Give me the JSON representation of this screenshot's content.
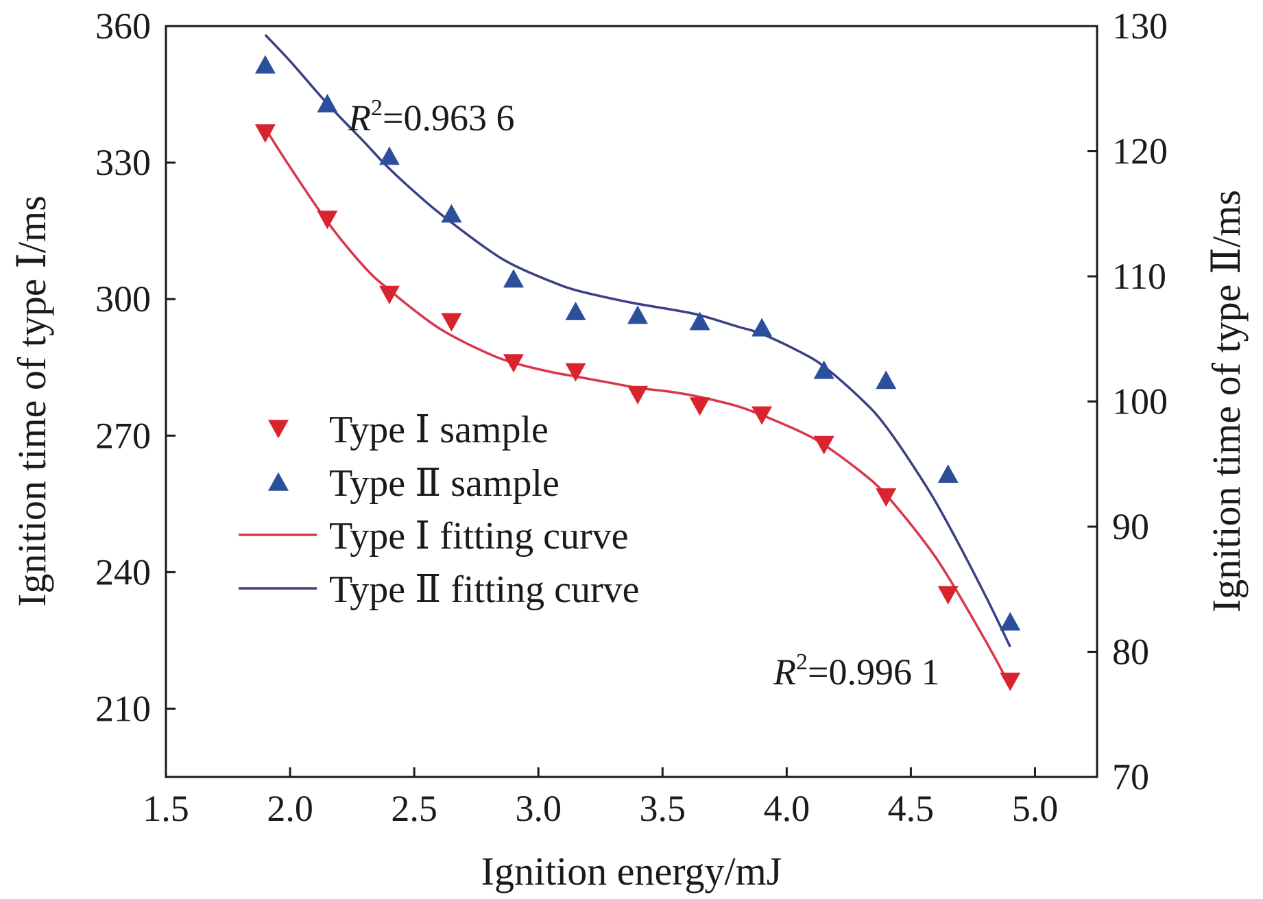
{
  "colors": {
    "type1": "#d92430",
    "type2": "#2b4f9a",
    "type1_curve": "#d8364a",
    "type2_curve": "#3a3f86",
    "axis": "#1a1a1a"
  },
  "chart_data": {
    "type": "scatter",
    "title": "",
    "xlabel": "Ignition energy/mJ",
    "ylabel_left": "Ignition time of type Ⅰ/ms",
    "ylabel_right": "Ignition time of type Ⅱ/ms",
    "xlim": [
      1.5,
      5.25
    ],
    "ylim_left": [
      195,
      360
    ],
    "ylim_right": [
      70,
      130
    ],
    "x_ticks": [
      "1.5",
      "2.0",
      "2.5",
      "3.0",
      "3.5",
      "4.0",
      "4.5",
      "5.0"
    ],
    "y_left_ticks": [
      "210",
      "240",
      "270",
      "300",
      "330",
      "360"
    ],
    "y_right_ticks": [
      "70",
      "80",
      "90",
      "100",
      "110",
      "120",
      "130"
    ],
    "grid": false,
    "legend_position": "center-left",
    "legend": [
      {
        "label": "Type Ⅰ sample",
        "kind": "marker-down"
      },
      {
        "label": "Type Ⅱ sample",
        "kind": "marker-up"
      },
      {
        "label": "Type Ⅰ fitting curve",
        "kind": "line-type1"
      },
      {
        "label": "Type Ⅱ fitting curve",
        "kind": "line-type2"
      }
    ],
    "annotations": {
      "r2_type2": {
        "prefix": "R",
        "sup": "2",
        "value": "=0.963 6"
      },
      "r2_type1": {
        "prefix": "R",
        "sup": "2",
        "value": "=0.996 1"
      }
    },
    "series": [
      {
        "name": "Type Ⅰ sample",
        "axis": "left",
        "marker": "triangle-down",
        "x": [
          1.9,
          2.15,
          2.4,
          2.65,
          2.9,
          3.15,
          3.4,
          3.65,
          3.9,
          4.15,
          4.4,
          4.65,
          4.9
        ],
        "y": [
          336.5,
          317.5,
          301,
          295,
          286,
          284,
          279,
          276.5,
          274.5,
          268,
          256.5,
          235,
          216
        ]
      },
      {
        "name": "Type Ⅱ sample",
        "axis": "right",
        "marker": "triangle-up",
        "x": [
          1.9,
          2.15,
          2.4,
          2.65,
          2.9,
          3.15,
          3.4,
          3.65,
          3.9,
          4.15,
          4.4,
          4.65,
          4.9
        ],
        "y": [
          126.9,
          123.8,
          119.6,
          115.0,
          109.8,
          107.2,
          106.9,
          106.4,
          105.9,
          102.5,
          101.7,
          94.2,
          82.4
        ]
      },
      {
        "name": "Type Ⅰ fitting curve",
        "axis": "left",
        "kind": "line",
        "x": [
          1.9,
          2.0,
          2.15,
          2.3,
          2.4,
          2.55,
          2.65,
          2.8,
          2.9,
          3.05,
          3.15,
          3.3,
          3.4,
          3.55,
          3.65,
          3.8,
          3.9,
          4.05,
          4.15,
          4.3,
          4.4,
          4.55,
          4.65,
          4.8,
          4.9
        ],
        "y": [
          337.5,
          329,
          317,
          307,
          302,
          295.5,
          292,
          288,
          286,
          284,
          283,
          281.5,
          280.5,
          279.5,
          278.5,
          276.5,
          274.5,
          271,
          268,
          262,
          257,
          247,
          239,
          225,
          215
        ]
      },
      {
        "name": "Type Ⅱ fitting curve",
        "axis": "right",
        "kind": "line",
        "x": [
          1.9,
          2.0,
          2.15,
          2.3,
          2.4,
          2.55,
          2.65,
          2.8,
          2.9,
          3.05,
          3.15,
          3.3,
          3.4,
          3.55,
          3.65,
          3.8,
          3.9,
          4.05,
          4.15,
          4.3,
          4.4,
          4.55,
          4.65,
          4.8,
          4.9
        ],
        "y": [
          129.3,
          127.2,
          123.8,
          120.7,
          118.6,
          115.9,
          114.3,
          112.1,
          110.9,
          109.6,
          108.9,
          108.2,
          107.8,
          107.3,
          106.9,
          106.0,
          105.4,
          104.0,
          102.8,
          100.2,
          98.0,
          93.6,
          90.2,
          84.5,
          80.4
        ]
      }
    ]
  }
}
